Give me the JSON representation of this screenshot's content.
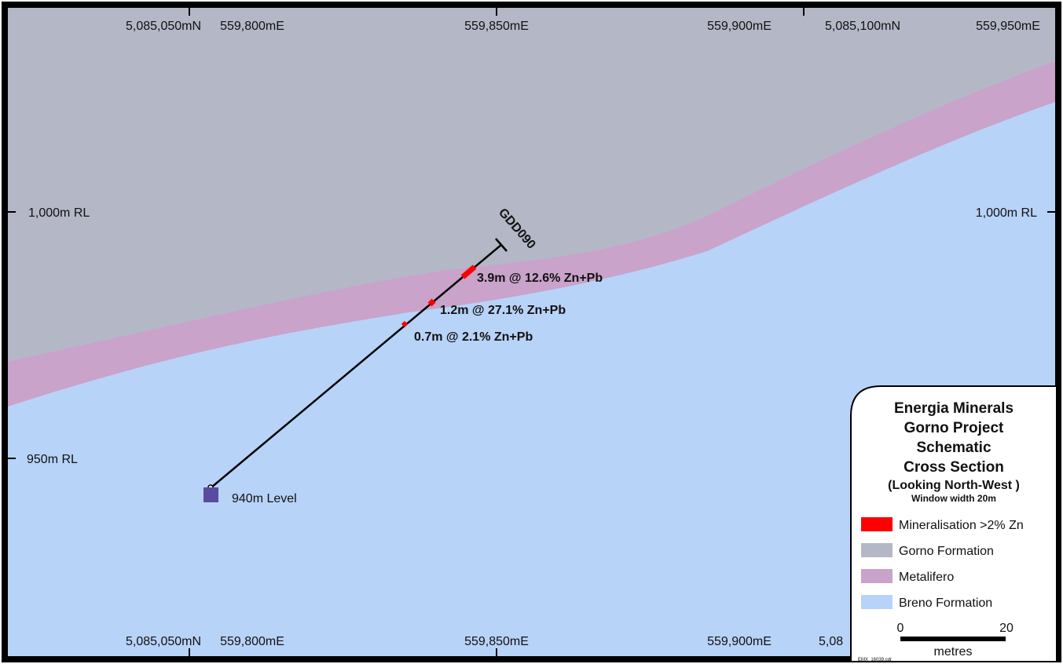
{
  "top_axis": {
    "labels": [
      "5,085,050mN",
      "559,800mE",
      "559,850mE",
      "559,900mE",
      "5,085,100mN",
      "559,950mE"
    ]
  },
  "bottom_axis": {
    "labels": [
      "5,085,050mN",
      "559,800mE",
      "559,850mE",
      "559,900mE",
      "5,08"
    ]
  },
  "levels": {
    "rl_1000_left": "1,000m RL",
    "rl_1000_right": "1,000m RL",
    "rl_950": "950m RL"
  },
  "drillhole": {
    "name": "GDD090",
    "collar_label": "940m Level",
    "intercepts": [
      "3.9m @ 12.6% Zn+Pb",
      "1.2m @ 27.1% Zn+Pb",
      "0.7m @ 2.1% Zn+Pb"
    ]
  },
  "legend": {
    "title_lines": [
      "Energia Minerals",
      "Gorno Project",
      "Schematic",
      "Cross Section"
    ],
    "subtitle": "(Looking North-West )",
    "window_width": "Window width 20m",
    "items": [
      {
        "label": "Mineralisation >2% Zn",
        "color": "#ff0000"
      },
      {
        "label": "Gorno Formation",
        "color": "#b4b7c6"
      },
      {
        "label": "Metalifero",
        "color": "#c9a3c9"
      },
      {
        "label": "Breno Formation",
        "color": "#b8d3f8"
      }
    ],
    "scale": {
      "min": "0",
      "max": "20",
      "unit": "metres"
    },
    "file_ref": "EMX_16039.cdr"
  },
  "colors": {
    "gorno_formation": "#b4b7c6",
    "metalifero": "#c9a3c9",
    "breno_formation": "#b8d3f8",
    "mineralisation": "#ff0000",
    "level_marker": "#5a4aa0"
  }
}
